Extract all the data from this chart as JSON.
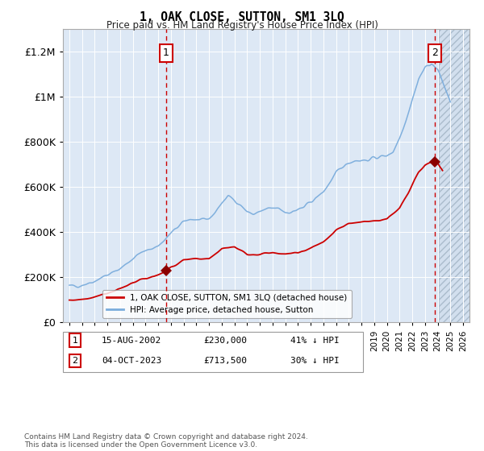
{
  "title": "1, OAK CLOSE, SUTTON, SM1 3LQ",
  "subtitle": "Price paid vs. HM Land Registry's House Price Index (HPI)",
  "footer": "Contains HM Land Registry data © Crown copyright and database right 2024.\nThis data is licensed under the Open Government Licence v3.0.",
  "legend_line1": "1, OAK CLOSE, SUTTON, SM1 3LQ (detached house)",
  "legend_line2": "HPI: Average price, detached house, Sutton",
  "annotation1": {
    "label": "1",
    "date": "15-AUG-2002",
    "price": "£230,000",
    "hpi": "41% ↓ HPI"
  },
  "annotation2": {
    "label": "2",
    "date": "04-OCT-2023",
    "price": "£713,500",
    "hpi": "30% ↓ HPI"
  },
  "hpi_color": "#7aacdc",
  "price_color": "#cc0000",
  "plot_bg": "#dde8f5",
  "ylim": [
    0,
    1300000
  ],
  "xlim_start": 1994.5,
  "xlim_end": 2026.5,
  "vline1_x": 2002.62,
  "vline2_x": 2023.77,
  "sale1_x": 2002.62,
  "sale1_y": 230000,
  "sale2_x": 2023.77,
  "sale2_y": 713500
}
